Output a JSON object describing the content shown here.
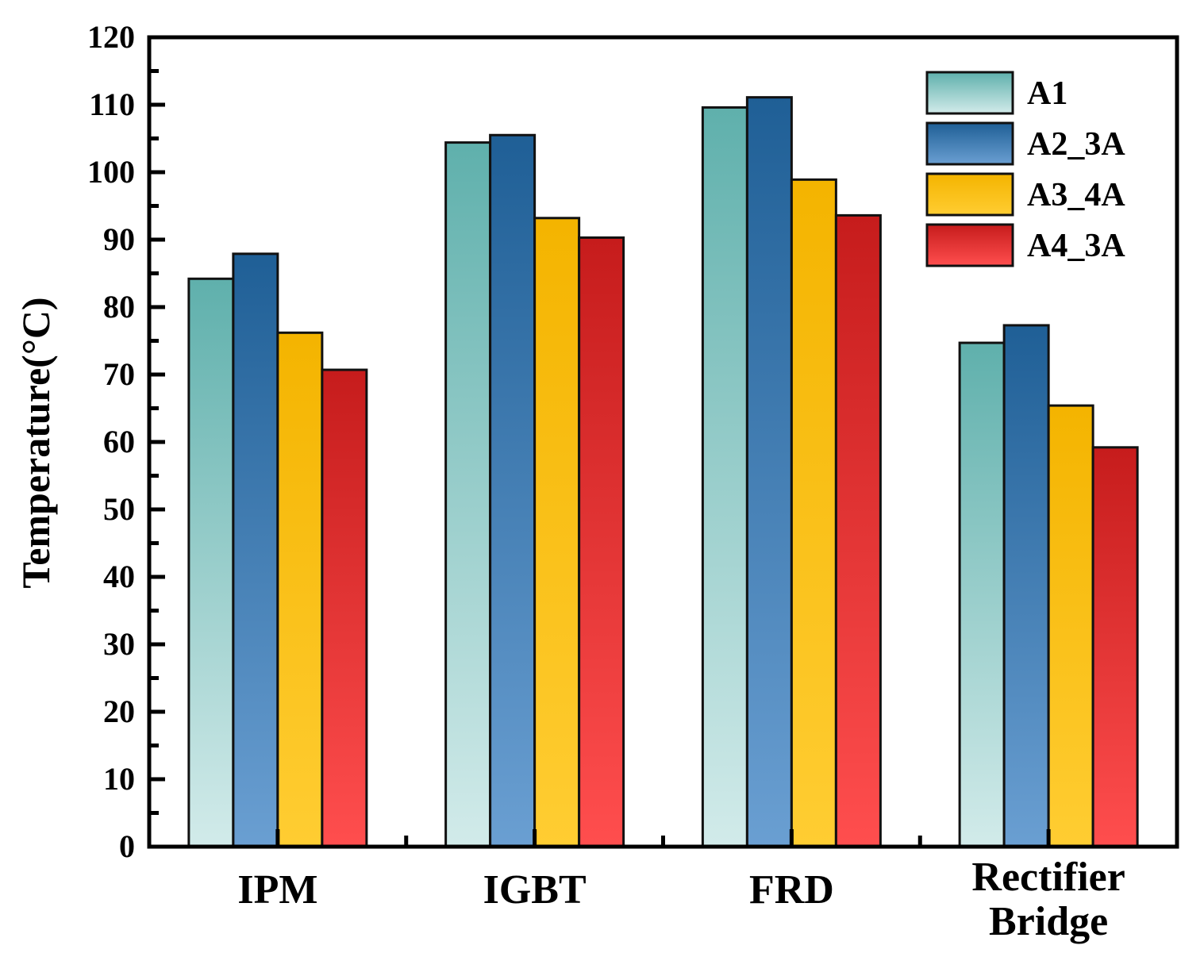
{
  "chart_data": {
    "type": "bar",
    "title": "",
    "xlabel": "",
    "ylabel": "Temperature(°C)",
    "ylim": [
      0,
      120
    ],
    "yticks": [
      0,
      10,
      20,
      30,
      40,
      50,
      60,
      70,
      80,
      90,
      100,
      110,
      120
    ],
    "categories": [
      [
        "IPM"
      ],
      [
        "IGBT"
      ],
      [
        "FRD"
      ],
      [
        "Rectifier",
        "Bridge"
      ]
    ],
    "series": [
      {
        "name": "A1",
        "values": [
          84.2,
          104.4,
          109.6,
          74.7
        ],
        "color_top": "#5fb0ac",
        "color_bottom": "#d2ebea"
      },
      {
        "name": "A2_3A",
        "values": [
          87.9,
          105.5,
          111.1,
          77.3
        ],
        "color_top": "#1f5f96",
        "color_bottom": "#6a9fd2"
      },
      {
        "name": "A3_4A",
        "values": [
          76.2,
          93.2,
          98.9,
          65.4
        ],
        "color_top": "#f4b400",
        "color_bottom": "#ffcd32"
      },
      {
        "name": "A4_3A",
        "values": [
          70.7,
          90.3,
          93.6,
          59.2
        ],
        "color_top": "#c61c1c",
        "color_bottom": "#ff4e4e"
      }
    ],
    "grid": false,
    "legend_position": "top-right"
  }
}
